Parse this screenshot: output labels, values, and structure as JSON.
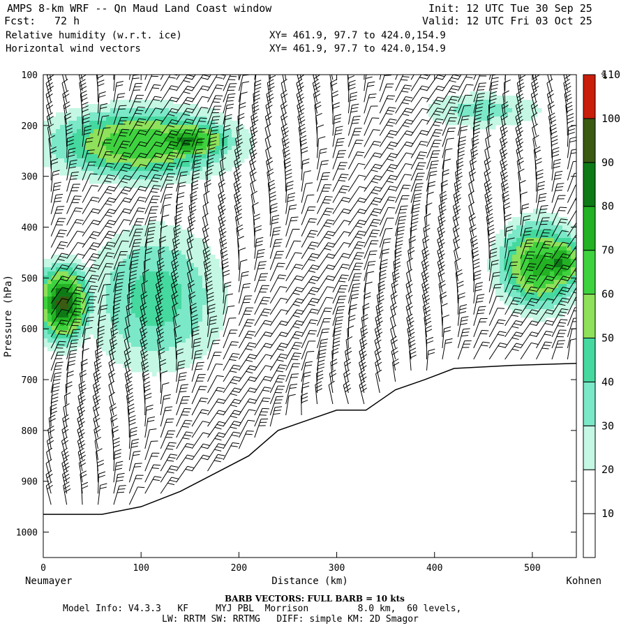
{
  "header": {
    "title": "AMPS 8-km WRF -- Qn Maud Land Coast window",
    "fcst_label": "Fcst:",
    "fcst_value": "72 h",
    "init": "Init: 12 UTC Tue 30 Sep 25",
    "valid": "Valid: 12 UTC Fri 03 Oct 25",
    "field1": "Relative humidity (w.r.t. ice)",
    "field2": "Horizontal wind vectors",
    "xy1": "XY= 461.9, 97.7 to 424.0,154.9",
    "xy2": "XY= 461.9, 97.7 to 424.0,154.9"
  },
  "footer": {
    "barb_note": "BARB VECTORS: FULL BARB = 10 kts",
    "model_line1": "Model Info: V4.3.3   KF     MYJ PBL  Morrison         8.0 km,  60 levels,",
    "model_line2": "LW: RRTM SW: RRTMG   DIFF: simple KM: 2D Smagor"
  },
  "colors": {
    "c10_20": "#ffffff",
    "c20_30": "#ffffff",
    "c30_40": "#c4f7e4",
    "c40_50": "#7be8c8",
    "c50_60": "#45d9a0",
    "c60_70": "#8fe05a",
    "c70_80": "#3fd23f",
    "c80_90": "#23b223",
    "c90_100": "#0e7a16",
    "c100_110": "#3b5a12",
    "c110_plus": "#c81e0a",
    "terrain": "#ffffff"
  },
  "chart_data": {
    "type": "heatmap",
    "title": "Relative humidity (w.r.t. ice)",
    "xlabel": "Distance (km)",
    "ylabel": "Pressure (hPa)",
    "x_left_label": "Neumayer",
    "x_right_label": "Kohnen",
    "xlim": [
      0,
      545
    ],
    "ylim": [
      1050,
      100
    ],
    "xticks": [
      0,
      100,
      200,
      300,
      400,
      500
    ],
    "yticks": [
      100,
      200,
      300,
      400,
      500,
      600,
      700,
      800,
      900,
      1000
    ],
    "colorbar": {
      "unit": "%",
      "levels": [
        10,
        20,
        30,
        40,
        50,
        60,
        70,
        80,
        90,
        100,
        110
      ]
    },
    "terrain_surface": {
      "x": [
        0,
        30,
        60,
        100,
        140,
        180,
        210,
        240,
        270,
        300,
        310,
        330,
        345,
        360,
        390,
        420,
        480,
        545
      ],
      "p": [
        965,
        965,
        965,
        950,
        920,
        880,
        850,
        800,
        780,
        760,
        760,
        760,
        740,
        720,
        700,
        678,
        672,
        668
      ]
    },
    "rh_features": [
      {
        "name": "upper moist layer",
        "x": [
          0,
          200
        ],
        "p": [
          170,
          300
        ],
        "rh": 80
      },
      {
        "name": "upper core",
        "x": [
          100,
          190
        ],
        "p": [
          200,
          260
        ],
        "rh": 92
      },
      {
        "name": "western mid-level core",
        "x": [
          0,
          40
        ],
        "p": [
          480,
          620
        ],
        "rh": 103
      },
      {
        "name": "eastern mid-level moist",
        "x": [
          470,
          545
        ],
        "p": [
          390,
          560
        ],
        "rh": 85
      },
      {
        "name": "eastern core",
        "x": [
          510,
          545
        ],
        "p": [
          420,
          520
        ],
        "rh": 92
      },
      {
        "name": "sloping mid-level moist band",
        "x": [
          40,
          190
        ],
        "p": [
          380,
          700
        ],
        "rh": 55
      },
      {
        "name": "upper eastern band",
        "x": [
          380,
          520
        ],
        "p": [
          140,
          200
        ],
        "rh": 45
      }
    ],
    "wind_barbs": {
      "full_barb_kts": 10,
      "wind": "mostly easterly to southeasterly"
    }
  }
}
